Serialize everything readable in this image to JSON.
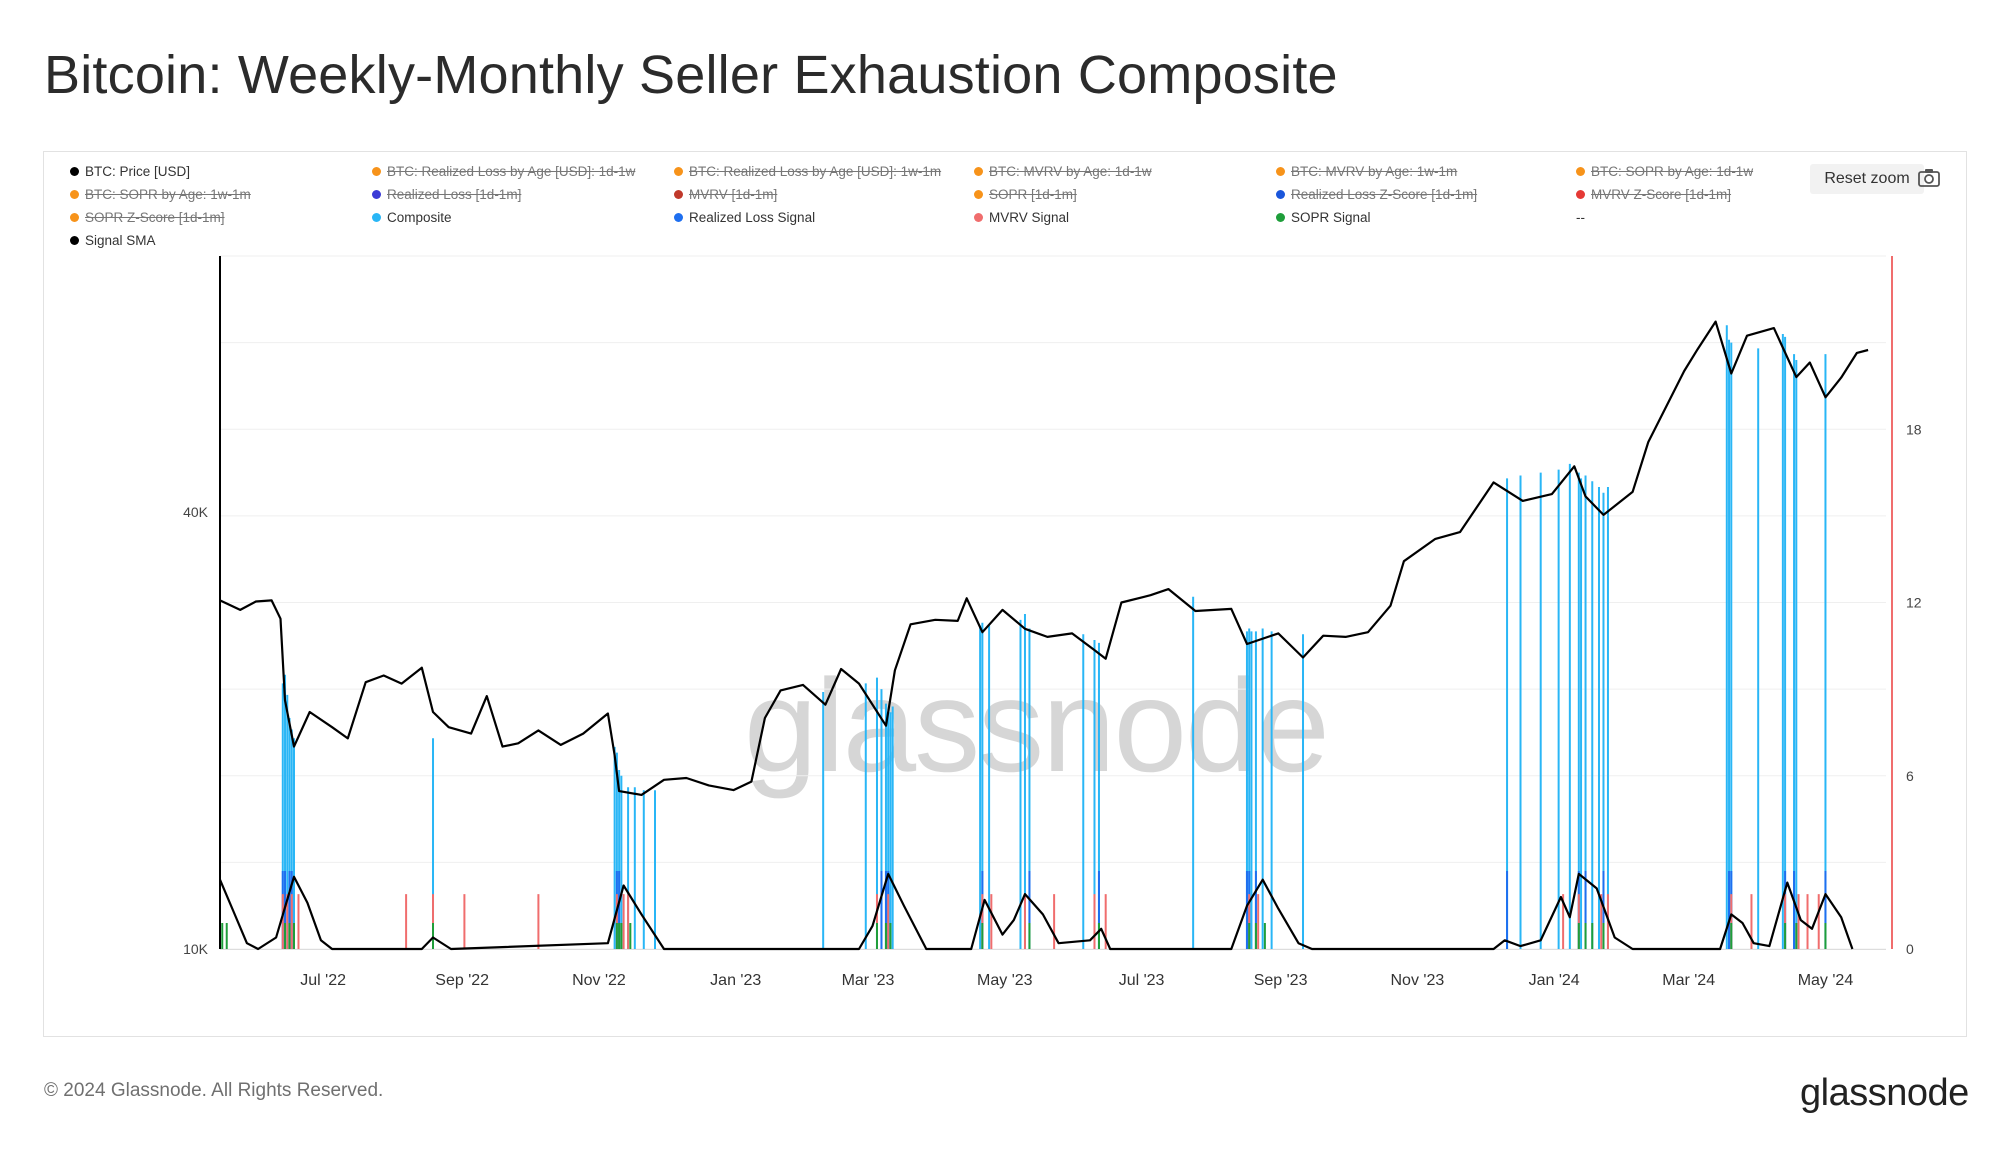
{
  "title": "Bitcoin: Weekly-Monthly Seller Exhaustion Composite",
  "footer": "© 2024 Glassnode. All Rights Reserved.",
  "brand": "glassnode",
  "watermark": "glassnode",
  "toolbar": {
    "reset_zoom": "Reset zoom",
    "camera_icon": "camera-icon"
  },
  "legend": [
    {
      "label": "BTC: Price [USD]",
      "color": "#000000",
      "active": true
    },
    {
      "label": "BTC: Realized Loss by Age [USD]: 1d-1w",
      "color": "#f7931a",
      "active": false
    },
    {
      "label": "BTC: Realized Loss by Age [USD]: 1w-1m",
      "color": "#f7931a",
      "active": false
    },
    {
      "label": "BTC: MVRV by Age: 1d-1w",
      "color": "#f7931a",
      "active": false
    },
    {
      "label": "BTC: MVRV by Age: 1w-1m",
      "color": "#f7931a",
      "active": false
    },
    {
      "label": "BTC: SOPR by Age: 1d-1w",
      "color": "#f7931a",
      "active": false
    },
    {
      "label": "BTC: SOPR by Age: 1w-1m",
      "color": "#f7931a",
      "active": false
    },
    {
      "label": "Realized Loss [1d-1m]",
      "color": "#3b3bd6",
      "active": false
    },
    {
      "label": "MVRV [1d-1m]",
      "color": "#c0392b",
      "active": false
    },
    {
      "label": "SOPR [1d-1m]",
      "color": "#f7931a",
      "active": false
    },
    {
      "label": "Realized Loss Z-Score [1d-1m]",
      "color": "#1a56db",
      "active": false
    },
    {
      "label": "MVRV Z-Score [1d-1m]",
      "color": "#e53935",
      "active": false
    },
    {
      "label": "SOPR Z-Score [1d-1m]",
      "color": "#f7931a",
      "active": false
    },
    {
      "label": "Composite",
      "color": "#29b6f6",
      "active": true
    },
    {
      "label": "Realized Loss Signal",
      "color": "#1e6ff0",
      "active": true
    },
    {
      "label": "MVRV Signal",
      "color": "#f06d6d",
      "active": true
    },
    {
      "label": "SOPR Signal",
      "color": "#1e9e3a",
      "active": true
    },
    {
      "label": "--",
      "color": "",
      "active": true
    },
    {
      "label": "Signal SMA",
      "color": "#000000",
      "active": true
    }
  ],
  "chart_data": {
    "type": "line",
    "title": "Bitcoin: Weekly-Monthly Seller Exhaustion Composite",
    "x_range": [
      "2022-05-16",
      "2024-05-28"
    ],
    "x_ticks": [
      "Jul '22",
      "Sep '22",
      "Nov '22",
      "Jan '23",
      "Mar '23",
      "May '23",
      "Jul '23",
      "Sep '23",
      "Nov '23",
      "Jan '24",
      "Mar '24",
      "May '24"
    ],
    "y_left": {
      "scale": "log",
      "ticks": [
        "10K",
        "40K"
      ],
      "range": [
        10000,
        90000
      ]
    },
    "y_right": {
      "scale": "linear",
      "ticks": [
        "0",
        "6",
        "12",
        "18"
      ],
      "range": [
        0,
        24
      ]
    },
    "grid": true,
    "legend_position": "top",
    "price_series": {
      "name": "BTC: Price [USD]",
      "color": "#000000",
      "points": [
        [
          "2022-05-16",
          30200
        ],
        [
          "2022-05-25",
          29300
        ],
        [
          "2022-06-01",
          30100
        ],
        [
          "2022-06-08",
          30200
        ],
        [
          "2022-06-12",
          28500
        ],
        [
          "2022-06-14",
          22000
        ],
        [
          "2022-06-18",
          19000
        ],
        [
          "2022-06-25",
          21200
        ],
        [
          "2022-07-05",
          20200
        ],
        [
          "2022-07-12",
          19500
        ],
        [
          "2022-07-20",
          23300
        ],
        [
          "2022-07-28",
          23800
        ],
        [
          "2022-08-05",
          23200
        ],
        [
          "2022-08-14",
          24400
        ],
        [
          "2022-08-19",
          21200
        ],
        [
          "2022-08-26",
          20200
        ],
        [
          "2022-09-05",
          19800
        ],
        [
          "2022-09-12",
          22300
        ],
        [
          "2022-09-19",
          19000
        ],
        [
          "2022-09-26",
          19200
        ],
        [
          "2022-10-05",
          20000
        ],
        [
          "2022-10-15",
          19100
        ],
        [
          "2022-10-25",
          19800
        ],
        [
          "2022-11-05",
          21100
        ],
        [
          "2022-11-08",
          18500
        ],
        [
          "2022-11-10",
          16500
        ],
        [
          "2022-11-20",
          16300
        ],
        [
          "2022-11-30",
          17100
        ],
        [
          "2022-12-10",
          17200
        ],
        [
          "2022-12-20",
          16800
        ],
        [
          "2022-12-31",
          16550
        ],
        [
          "2023-01-08",
          17000
        ],
        [
          "2023-01-14",
          20800
        ],
        [
          "2023-01-21",
          22700
        ],
        [
          "2023-01-31",
          23100
        ],
        [
          "2023-02-10",
          21700
        ],
        [
          "2023-02-17",
          24300
        ],
        [
          "2023-02-25",
          23200
        ],
        [
          "2023-03-09",
          20300
        ],
        [
          "2023-03-13",
          24200
        ],
        [
          "2023-03-20",
          28000
        ],
        [
          "2023-03-31",
          28400
        ],
        [
          "2023-04-10",
          28300
        ],
        [
          "2023-04-14",
          30400
        ],
        [
          "2023-04-21",
          27300
        ],
        [
          "2023-04-30",
          29300
        ],
        [
          "2023-05-10",
          27600
        ],
        [
          "2023-05-20",
          26900
        ],
        [
          "2023-05-31",
          27200
        ],
        [
          "2023-06-10",
          25800
        ],
        [
          "2023-06-15",
          25100
        ],
        [
          "2023-06-22",
          30000
        ],
        [
          "2023-07-05",
          30700
        ],
        [
          "2023-07-13",
          31300
        ],
        [
          "2023-07-25",
          29200
        ],
        [
          "2023-08-10",
          29400
        ],
        [
          "2023-08-17",
          26300
        ],
        [
          "2023-08-31",
          27200
        ],
        [
          "2023-09-11",
          25200
        ],
        [
          "2023-09-20",
          27000
        ],
        [
          "2023-09-30",
          26900
        ],
        [
          "2023-10-10",
          27300
        ],
        [
          "2023-10-20",
          29700
        ],
        [
          "2023-10-26",
          34200
        ],
        [
          "2023-11-09",
          36700
        ],
        [
          "2023-11-20",
          37500
        ],
        [
          "2023-12-05",
          43900
        ],
        [
          "2023-12-18",
          41400
        ],
        [
          "2023-12-31",
          42300
        ],
        [
          "2024-01-10",
          46200
        ],
        [
          "2024-01-15",
          42000
        ],
        [
          "2024-01-23",
          39600
        ],
        [
          "2024-02-05",
          42600
        ],
        [
          "2024-02-12",
          49900
        ],
        [
          "2024-02-28",
          62500
        ],
        [
          "2024-03-05",
          67000
        ],
        [
          "2024-03-13",
          73100
        ],
        [
          "2024-03-20",
          62000
        ],
        [
          "2024-03-27",
          69900
        ],
        [
          "2024-04-08",
          71600
        ],
        [
          "2024-04-18",
          61300
        ],
        [
          "2024-04-24",
          64200
        ],
        [
          "2024-05-01",
          57500
        ],
        [
          "2024-05-08",
          61200
        ],
        [
          "2024-05-15",
          66200
        ],
        [
          "2024-05-20",
          66800
        ]
      ]
    },
    "composite_series": {
      "name": "Composite",
      "color": "#29b6f6",
      "points": [
        [
          "2022-06-13",
          9.2
        ],
        [
          "2022-06-14",
          9.5
        ],
        [
          "2022-06-15",
          8.8
        ],
        [
          "2022-06-16",
          8.0
        ],
        [
          "2022-06-17",
          7.6
        ],
        [
          "2022-06-18",
          7.3
        ],
        [
          "2022-08-19",
          7.3
        ],
        [
          "2022-11-08",
          7.0
        ],
        [
          "2022-11-09",
          6.8
        ],
        [
          "2022-11-10",
          6.2
        ],
        [
          "2022-11-11",
          6.0
        ],
        [
          "2022-11-14",
          5.6
        ],
        [
          "2022-11-17",
          5.6
        ],
        [
          "2022-11-21",
          5.5
        ],
        [
          "2022-11-26",
          5.5
        ],
        [
          "2023-02-09",
          8.9
        ],
        [
          "2023-02-28",
          9.2
        ],
        [
          "2023-03-05",
          9.4
        ],
        [
          "2023-03-07",
          9.0
        ],
        [
          "2023-03-09",
          8.5
        ],
        [
          "2023-03-10",
          8.2
        ],
        [
          "2023-03-11",
          8.2
        ],
        [
          "2023-03-12",
          8.4
        ],
        [
          "2023-04-20",
          11.2
        ],
        [
          "2023-04-21",
          11.3
        ],
        [
          "2023-04-24",
          11.2
        ],
        [
          "2023-05-08",
          11.4
        ],
        [
          "2023-05-10",
          11.6
        ],
        [
          "2023-05-12",
          11.1
        ],
        [
          "2023-06-05",
          10.9
        ],
        [
          "2023-06-10",
          10.7
        ],
        [
          "2023-06-12",
          10.6
        ],
        [
          "2023-07-24",
          12.2
        ],
        [
          "2023-08-17",
          11.0
        ],
        [
          "2023-08-18",
          11.1
        ],
        [
          "2023-08-19",
          11.0
        ],
        [
          "2023-08-21",
          11.0
        ],
        [
          "2023-08-24",
          11.1
        ],
        [
          "2023-08-28",
          11.0
        ],
        [
          "2023-09-11",
          10.9
        ],
        [
          "2023-12-11",
          16.3
        ],
        [
          "2023-12-17",
          16.4
        ],
        [
          "2023-12-26",
          16.5
        ],
        [
          "2024-01-03",
          16.6
        ],
        [
          "2024-01-08",
          16.8
        ],
        [
          "2024-01-12",
          16.5
        ],
        [
          "2024-01-13",
          16.3
        ],
        [
          "2024-01-15",
          16.4
        ],
        [
          "2024-01-18",
          16.2
        ],
        [
          "2024-01-21",
          16.0
        ],
        [
          "2024-01-23",
          15.8
        ],
        [
          "2024-01-25",
          16.0
        ],
        [
          "2024-03-18",
          21.6
        ],
        [
          "2024-03-19",
          21.1
        ],
        [
          "2024-03-20",
          21.0
        ],
        [
          "2024-04-01",
          20.8
        ],
        [
          "2024-04-12",
          21.3
        ],
        [
          "2024-04-13",
          21.2
        ],
        [
          "2024-04-17",
          20.6
        ],
        [
          "2024-04-18",
          20.4
        ],
        [
          "2024-05-01",
          20.6
        ]
      ]
    },
    "signal_series": [
      {
        "name": "Realized Loss Signal",
        "color": "#1e6ff0",
        "value": 2.7,
        "dates": [
          "2022-06-13",
          "2022-06-14",
          "2022-06-16",
          "2022-06-17",
          "2022-11-09",
          "2022-11-10",
          "2023-03-07",
          "2023-03-09",
          "2023-03-10",
          "2023-04-21",
          "2023-05-12",
          "2023-06-12",
          "2023-08-17",
          "2023-08-18",
          "2023-08-21",
          "2023-12-11",
          "2024-01-12",
          "2024-01-15",
          "2024-01-23",
          "2024-03-19",
          "2024-03-20",
          "2024-04-13",
          "2024-04-17",
          "2024-05-01"
        ]
      },
      {
        "name": "MVRV Signal",
        "color": "#f06d6d",
        "value": 1.9,
        "dates": [
          "2022-06-13",
          "2022-06-15",
          "2022-06-17",
          "2022-06-20",
          "2022-08-07",
          "2022-08-19",
          "2022-09-02",
          "2022-10-05",
          "2022-11-09",
          "2022-11-12",
          "2022-11-14",
          "2023-03-05",
          "2023-03-10",
          "2023-04-21",
          "2023-04-25",
          "2023-05-10",
          "2023-05-23",
          "2023-06-10",
          "2023-06-15",
          "2023-08-18",
          "2023-08-22",
          "2024-01-05",
          "2024-01-12",
          "2024-01-22",
          "2024-01-25",
          "2024-03-20",
          "2024-03-29",
          "2024-04-13",
          "2024-04-19",
          "2024-04-23",
          "2024-04-28"
        ]
      },
      {
        "name": "SOPR Signal",
        "color": "#1e9e3a",
        "value": 0.9,
        "dates": [
          "2022-05-17",
          "2022-05-19",
          "2022-06-14",
          "2022-06-16",
          "2022-06-18",
          "2022-08-19",
          "2022-11-09",
          "2022-11-10",
          "2022-11-11",
          "2022-11-15",
          "2023-03-05",
          "2023-03-09",
          "2023-03-11",
          "2023-04-21",
          "2023-05-12",
          "2023-06-12",
          "2023-08-18",
          "2023-08-21",
          "2023-08-25",
          "2024-01-12",
          "2024-01-15",
          "2024-01-18",
          "2024-01-23",
          "2024-03-20",
          "2024-04-13",
          "2024-04-18",
          "2024-05-01"
        ]
      }
    ],
    "signal_sma": {
      "name": "Signal SMA",
      "color": "#000000",
      "points": [
        [
          "2022-05-16",
          2.4
        ],
        [
          "2022-05-22",
          1.3
        ],
        [
          "2022-05-28",
          0.2
        ],
        [
          "2022-06-02",
          0
        ],
        [
          "2022-06-10",
          0.4
        ],
        [
          "2022-06-18",
          2.5
        ],
        [
          "2022-06-24",
          1.6
        ],
        [
          "2022-06-30",
          0.3
        ],
        [
          "2022-07-05",
          0
        ],
        [
          "2022-08-14",
          0
        ],
        [
          "2022-08-19",
          0.4
        ],
        [
          "2022-08-27",
          0
        ],
        [
          "2022-11-05",
          0.2
        ],
        [
          "2022-11-12",
          2.2
        ],
        [
          "2022-11-20",
          1.2
        ],
        [
          "2022-11-30",
          0
        ],
        [
          "2023-02-25",
          0
        ],
        [
          "2023-03-03",
          0.8
        ],
        [
          "2023-03-10",
          2.6
        ],
        [
          "2023-03-17",
          1.5
        ],
        [
          "2023-03-27",
          0
        ],
        [
          "2023-04-16",
          0
        ],
        [
          "2023-04-22",
          1.7
        ],
        [
          "2023-04-30",
          0.5
        ],
        [
          "2023-05-05",
          1.0
        ],
        [
          "2023-05-10",
          1.9
        ],
        [
          "2023-05-18",
          1.2
        ],
        [
          "2023-05-25",
          0.2
        ],
        [
          "2023-06-08",
          0.3
        ],
        [
          "2023-06-13",
          0.7
        ],
        [
          "2023-06-17",
          0
        ],
        [
          "2023-08-10",
          0
        ],
        [
          "2023-08-17",
          1.5
        ],
        [
          "2023-08-24",
          2.4
        ],
        [
          "2023-08-31",
          1.4
        ],
        [
          "2023-09-09",
          0.2
        ],
        [
          "2023-09-15",
          0
        ],
        [
          "2023-12-05",
          0
        ],
        [
          "2023-12-10",
          0.3
        ],
        [
          "2023-12-17",
          0.1
        ],
        [
          "2023-12-26",
          0.3
        ],
        [
          "2024-01-04",
          1.8
        ],
        [
          "2024-01-08",
          1.1
        ],
        [
          "2024-01-12",
          2.6
        ],
        [
          "2024-01-20",
          2.1
        ],
        [
          "2024-01-28",
          0.4
        ],
        [
          "2024-02-05",
          0
        ],
        [
          "2024-03-15",
          0
        ],
        [
          "2024-03-20",
          1.2
        ],
        [
          "2024-03-25",
          0.9
        ],
        [
          "2024-03-30",
          0.2
        ],
        [
          "2024-04-06",
          0.1
        ],
        [
          "2024-04-14",
          2.3
        ],
        [
          "2024-04-20",
          1.0
        ],
        [
          "2024-04-25",
          0.7
        ],
        [
          "2024-05-01",
          1.9
        ],
        [
          "2024-05-08",
          1.1
        ],
        [
          "2024-05-13",
          0
        ]
      ]
    }
  }
}
